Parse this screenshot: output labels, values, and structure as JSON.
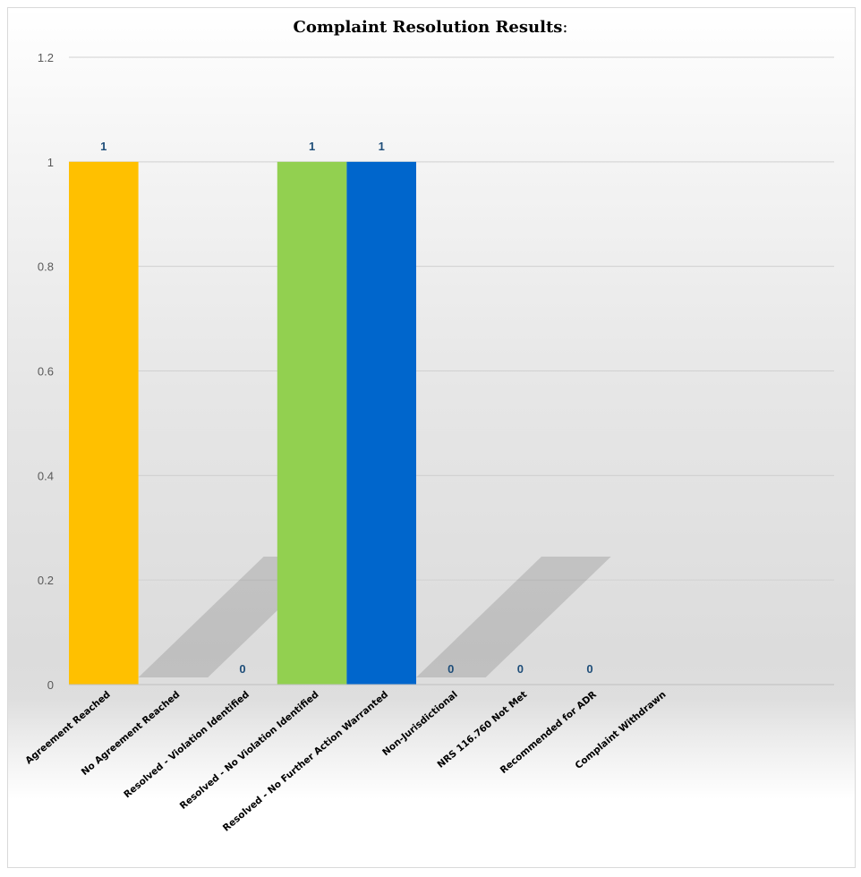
{
  "chart_data": {
    "type": "bar",
    "title": "Complaint Resolution Results",
    "title_suffix": ":",
    "categories": [
      "Agreement Reached",
      "No Agreement Reached",
      "Resolved - Violation Identified",
      "Resolved - No Violation Identified",
      "Resolved - No Further Action Warranted",
      "Non-Jurisdictional",
      "NRS 116.760 Not Met",
      "Recommended for ADR",
      "Complaint Withdrawn"
    ],
    "values": [
      1,
      null,
      0,
      1,
      1,
      0,
      0,
      0,
      null
    ],
    "data_labels": [
      "1",
      "",
      "0",
      "1",
      "1",
      "0",
      "0",
      "0",
      ""
    ],
    "colors": [
      "#FFC000",
      null,
      null,
      "#92D050",
      "#0066CC",
      null,
      null,
      null,
      null
    ],
    "label_color": "#1F4E79",
    "ylim": [
      0,
      1.2
    ],
    "yticks": [
      "0",
      "0.2",
      "0.4",
      "0.6",
      "0.8",
      "1",
      "1.2"
    ],
    "grid": true,
    "xlabel": "",
    "ylabel": ""
  }
}
